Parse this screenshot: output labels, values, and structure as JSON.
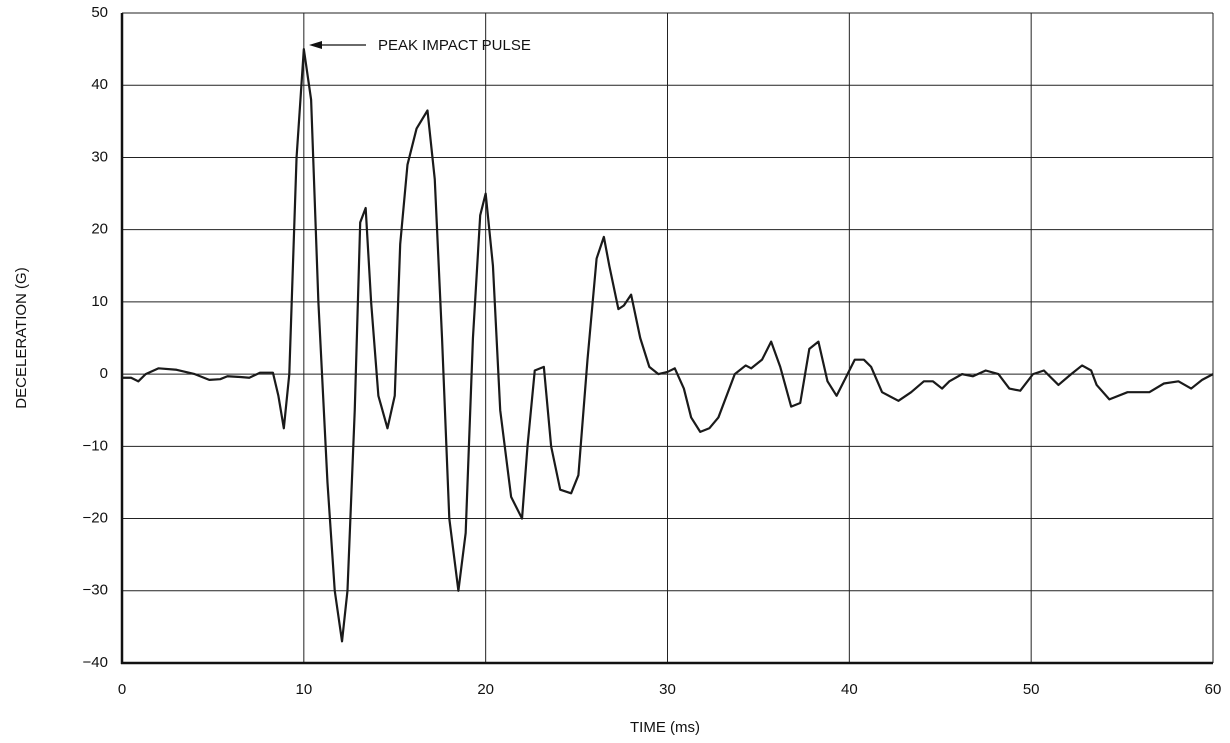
{
  "chart_data": {
    "type": "line",
    "x_label": "TIME (ms)",
    "y_label": "DECELERATION (G)",
    "annotation": "PEAK IMPACT PULSE",
    "xlim": [
      0,
      60
    ],
    "xticks": [
      0,
      10,
      20,
      30,
      40,
      50,
      60
    ],
    "ylim": [
      -40,
      50
    ],
    "yticks": [
      {
        "value": -40,
        "label": "−40"
      },
      {
        "value": -30,
        "label": "−30"
      },
      {
        "value": -20,
        "label": "−20"
      },
      {
        "value": -10,
        "label": "−10"
      },
      0,
      10,
      20,
      30,
      40,
      50
    ],
    "grid": true,
    "color": "#1a1a1a",
    "x": [
      0,
      0.5,
      0.9,
      1.3,
      2,
      3,
      4,
      4.8,
      5.4,
      5.8,
      6.5,
      7,
      7.6,
      8.3,
      8.6,
      8.9,
      9.2,
      9.6,
      10,
      10.4,
      10.8,
      11.3,
      11.7,
      12.1,
      12.4,
      12.8,
      13.1,
      13.4,
      13.7,
      14.1,
      14.6,
      15,
      15.3,
      15.7,
      16.2,
      16.8,
      17.2,
      17.6,
      18,
      18.5,
      18.9,
      19.3,
      19.7,
      20,
      20.4,
      20.8,
      21.4,
      22,
      22.3,
      22.7,
      23.2,
      23.6,
      24.1,
      24.7,
      25.1,
      25.6,
      26.1,
      26.5,
      26.8,
      27.3,
      27.6,
      28,
      28.5,
      29,
      29.5,
      30,
      30.4,
      30.9,
      31.3,
      31.8,
      32.3,
      32.8,
      33.7,
      34.3,
      34.6,
      35.2,
      35.7,
      36.2,
      36.8,
      37.3,
      37.8,
      38.3,
      38.8,
      39.3,
      39.8,
      40.3,
      40.8,
      41.2,
      41.8,
      42.7,
      43.4,
      44.1,
      44.6,
      45.1,
      45.5,
      46.2,
      46.8,
      47.5,
      48.2,
      48.8,
      49.4,
      50.1,
      50.7,
      51.5,
      52.2,
      52.8,
      53.3,
      53.6,
      54.3,
      55.3,
      56.5,
      57.3,
      58.1,
      58.8,
      59.4,
      60
    ],
    "values": [
      -0.5,
      -0.5,
      -1,
      0,
      0.8,
      0.6,
      0,
      -0.8,
      -0.7,
      -0.3,
      -0.4,
      -0.5,
      0.2,
      0.2,
      -3,
      -7.5,
      0,
      30,
      45,
      38,
      10,
      -15,
      -30,
      -37,
      -30,
      -5,
      21,
      23,
      10,
      -3,
      -7.5,
      -3,
      18,
      29,
      34,
      36.5,
      27,
      5,
      -20,
      -30,
      -22,
      5,
      22,
      25,
      15,
      -5,
      -17,
      -20,
      -10,
      0.5,
      1,
      -10,
      -16,
      -16.5,
      -14,
      2,
      16,
      19,
      15,
      9,
      9.5,
      11,
      5,
      1,
      0,
      0.3,
      0.8,
      -2,
      -6,
      -8,
      -7.5,
      -6,
      0,
      1.2,
      0.8,
      2,
      4.5,
      1,
      -4.5,
      -4,
      3.5,
      4.5,
      -1,
      -3,
      -0.5,
      2,
      2,
      1,
      -2.5,
      -3.7,
      -2.5,
      -1,
      -1,
      -2,
      -1,
      0,
      -0.3,
      0.5,
      0,
      -2,
      -2.3,
      0,
      0.5,
      -1.5,
      0,
      1.2,
      0.5,
      -1.5,
      -3.5,
      -2.5,
      -2.5,
      -1.3,
      -1,
      -2,
      -0.8,
      0
    ]
  }
}
